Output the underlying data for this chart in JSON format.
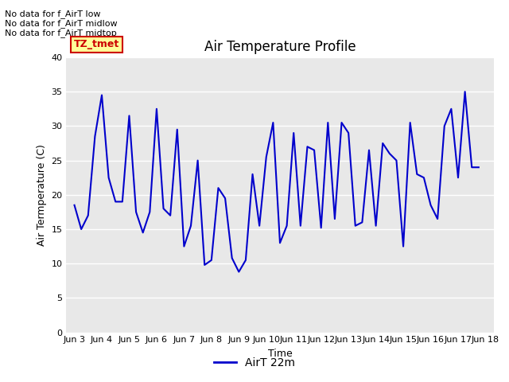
{
  "title": "Air Temperature Profile",
  "xlabel": "Time",
  "ylabel": "Air Termperature (C)",
  "legend_label": "AirT 22m",
  "ylim": [
    0,
    40
  ],
  "yticks": [
    0,
    5,
    10,
    15,
    20,
    25,
    30,
    35,
    40
  ],
  "xtick_labels": [
    "Jun 3",
    "Jun 4",
    "Jun 5",
    "Jun 6",
    "Jun 7",
    "Jun 8",
    "Jun 9",
    "Jun 10",
    "Jun 11",
    "Jun 12",
    "Jun 13",
    "Jun 14",
    "Jun 15",
    "Jun 16",
    "Jun 17",
    "Jun 18"
  ],
  "line_color": "#0000cc",
  "plot_bg_color": "#e8e8e8",
  "fig_bg_color": "#ffffff",
  "annotations_text": [
    "No data for f_AirT low",
    "No data for f_AirT midlow",
    "No data for f_AirT midtop"
  ],
  "annotation_box_text": "TZ_tmet",
  "annotation_box_color": "#cc0000",
  "annotation_box_bg": "#ffff99",
  "x_data": [
    0.0,
    0.25,
    0.5,
    0.75,
    1.0,
    1.25,
    1.5,
    1.75,
    2.0,
    2.25,
    2.5,
    2.75,
    3.0,
    3.25,
    3.5,
    3.75,
    4.0,
    4.25,
    4.5,
    4.75,
    5.0,
    5.25,
    5.5,
    5.75,
    6.0,
    6.25,
    6.5,
    6.75,
    7.0,
    7.25,
    7.5,
    7.75,
    8.0,
    8.25,
    8.5,
    8.75,
    9.0,
    9.25,
    9.5,
    9.75,
    10.0,
    10.25,
    10.5,
    10.75,
    11.0,
    11.25,
    11.5,
    11.75,
    12.0,
    12.25,
    12.5,
    12.75,
    13.0,
    13.25,
    13.5,
    13.75,
    14.0,
    14.25,
    14.5,
    14.75
  ],
  "y_data": [
    18.5,
    15.0,
    17.0,
    28.5,
    34.5,
    22.5,
    19.0,
    19.0,
    31.5,
    17.5,
    14.5,
    17.5,
    32.5,
    18.0,
    17.0,
    29.5,
    12.5,
    15.5,
    25.0,
    9.8,
    10.5,
    21.0,
    19.5,
    10.8,
    8.8,
    10.5,
    23.0,
    15.5,
    25.5,
    30.5,
    13.0,
    15.5,
    29.0,
    15.5,
    27.0,
    26.5,
    15.2,
    30.5,
    16.5,
    30.5,
    29.0,
    15.5,
    16.0,
    26.5,
    15.5,
    27.5,
    26.0,
    25.0,
    12.5,
    30.5,
    23.0,
    22.5,
    18.5,
    16.5,
    30.0,
    32.5,
    22.5,
    35.0,
    24.0,
    24.0
  ]
}
